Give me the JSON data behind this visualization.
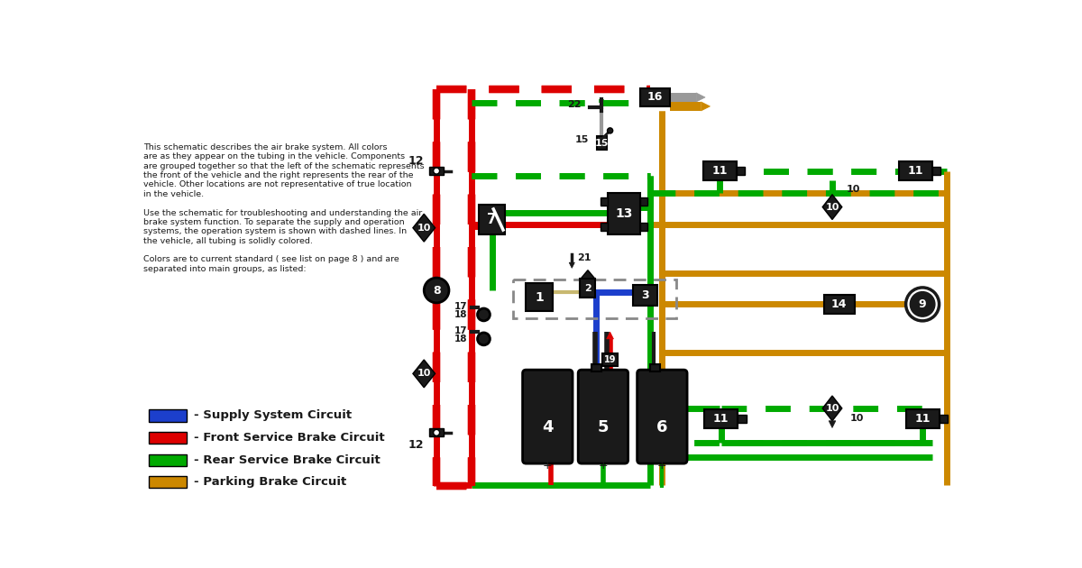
{
  "bg_color": "#ffffff",
  "description_text": [
    "This schematic describes the air brake system. All colors",
    "are as they appear on the tubing in the vehicle. Components",
    "are grouped together so that the left of the schematic represents",
    "the front of the vehicle and the right represents the rear of the",
    "vehicle. Other locations are not representative of true location",
    "in the vehicle.",
    "",
    "Use the schematic for troubleshooting and understanding the air",
    "brake system function. To separate the supply and operation",
    "systems, the operation system is shown with dashed lines. In",
    "the vehicle, all tubing is solidly colored.",
    "",
    "Colors are to current standard ( see list on page 8 ) and are",
    "separated into main groups, as listed:"
  ],
  "legend": [
    {
      "color": "#1c3fcc",
      "label": "Supply System Circuit"
    },
    {
      "color": "#dd0000",
      "label": "Front Service Brake Circuit"
    },
    {
      "color": "#00aa00",
      "label": "Rear Service Brake Circuit"
    },
    {
      "color": "#cc8800",
      "label": "Parking Brake Circuit"
    }
  ],
  "colors": {
    "red": "#dd0000",
    "green": "#00aa00",
    "blue": "#1c3fcc",
    "orange": "#cc8800",
    "gray": "#999999",
    "black": "#1a1a1a",
    "white": "#ffffff",
    "tan": "#c8b870"
  }
}
